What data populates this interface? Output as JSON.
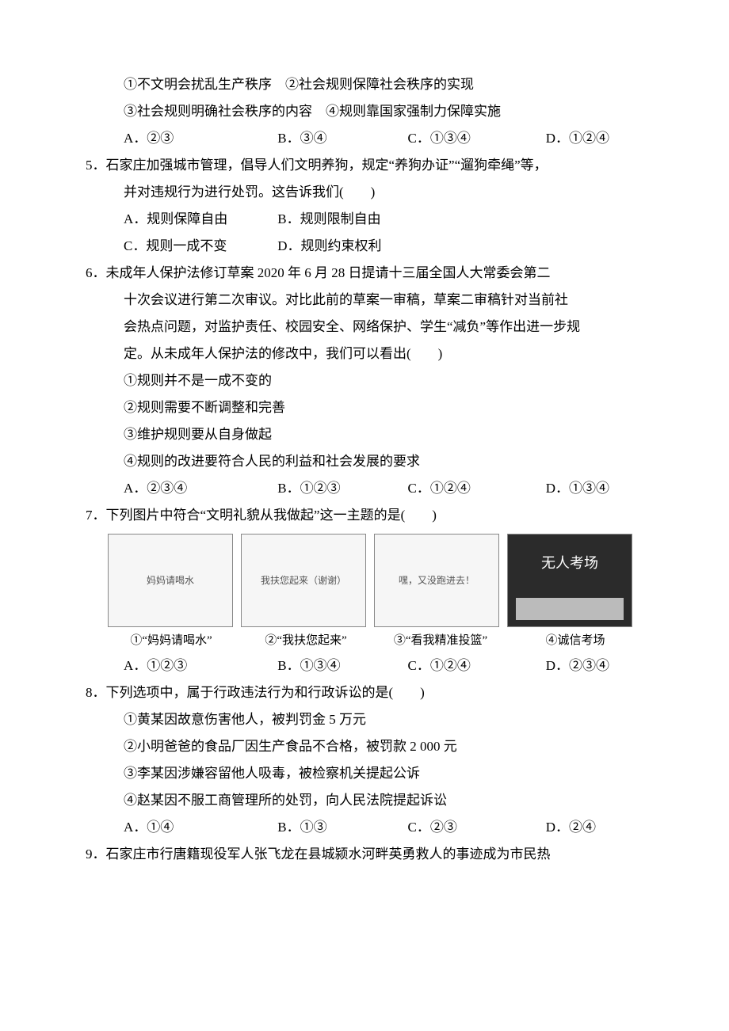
{
  "q4_tail": {
    "stmt1": "①不文明会扰乱生产秩序　②社会规则保障社会秩序的实现",
    "stmt2": "③社会规则明确社会秩序的内容　④规则靠国家强制力保障实施",
    "A": "A．②③",
    "B": "B．③④",
    "C": "C．①③④",
    "D": "D．①②④"
  },
  "q5": {
    "stem1": "5．石家庄加强城市管理，倡导人们文明养狗，规定“养狗办证”“遛狗牵绳”等，",
    "stem2": "并对违规行为进行处罚。这告诉我们(　　)",
    "A": "A．规则保障自由",
    "B": "B．规则限制自由",
    "C": "C．规则一成不变",
    "D": "D．规则约束权利"
  },
  "q6": {
    "stem1": "6．未成年人保护法修订草案 2020 年 6 月 28 日提请十三届全国人大常委会第二",
    "stem2": "十次会议进行第二次审议。对比此前的草案一审稿，草案二审稿针对当前社",
    "stem3": "会热点问题，对监护责任、校园安全、网络保护、学生“减负”等作出进一步规",
    "stem4": "定。从未成年人保护法的修改中，我们可以看出(　　)",
    "s1": "①规则并不是一成不变的",
    "s2": "②规则需要不断调整和完善",
    "s3": "③维护规则要从自身做起",
    "s4": "④规则的改进要符合人民的利益和社会发展的要求",
    "A": "A．②③④",
    "B": "B．①②③",
    "C": "C．①②④",
    "D": "D．①③④"
  },
  "q7": {
    "stem": "7．下列图片中符合“文明礼貌从我做起”这一主题的是(　　)",
    "img1_alt": "妈妈请喝水",
    "img2_alt": "我扶您起来（谢谢）",
    "img3_alt": "嘿，又没跑进去！",
    "img4_text": "无人考场",
    "cap1": "①“妈妈请喝水”",
    "cap2": "②“我扶您起来”",
    "cap3": "③“看我精准投篮”",
    "cap4": "④诚信考场",
    "A": "A．①②③",
    "B": "B．①③④",
    "C": "C．①②④",
    "D": "D．②③④"
  },
  "q8": {
    "stem": "8．下列选项中，属于行政违法行为和行政诉讼的是(　　)",
    "s1": "①黄某因故意伤害他人，被判罚金 5 万元",
    "s2": "②小明爸爸的食品厂因生产食品不合格，被罚款 2 000 元",
    "s3": "③李某因涉嫌容留他人吸毒，被检察机关提起公诉",
    "s4": "④赵某因不服工商管理所的处罚，向人民法院提起诉讼",
    "A": "A．①④",
    "B": "B．①③",
    "C": "C．②③",
    "D": "D．②④"
  },
  "q9": {
    "stem": "9．石家庄市行唐籍现役军人张飞龙在县城颍水河畔英勇救人的事迹成为市民热"
  }
}
